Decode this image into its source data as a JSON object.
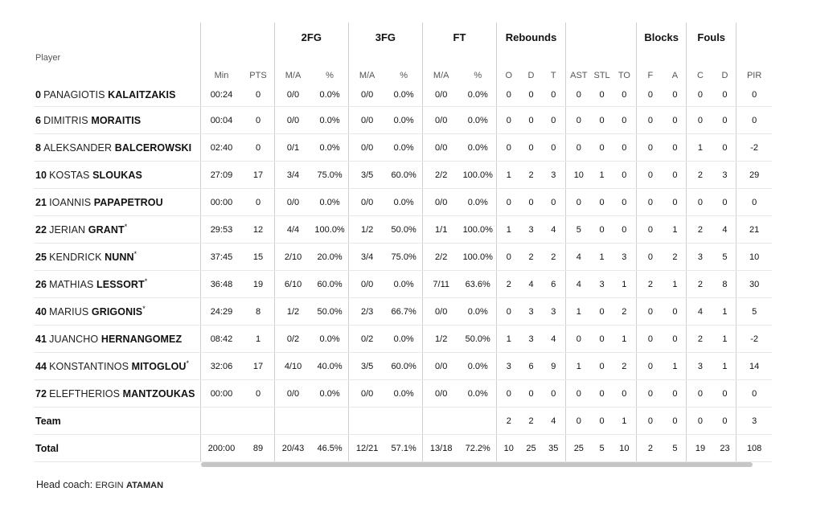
{
  "groups": {
    "fg2": "2FG",
    "fg3": "3FG",
    "ft": "FT",
    "reb": "Rebounds",
    "blk": "Blocks",
    "fouls": "Fouls"
  },
  "headers": {
    "player": "Player",
    "min": "Min",
    "pts": "PTS",
    "fg2_ma": "M/A",
    "fg2_pct": "%",
    "fg3_ma": "M/A",
    "fg3_pct": "%",
    "ft_ma": "M/A",
    "ft_pct": "%",
    "o": "O",
    "d": "D",
    "t": "T",
    "ast": "AST",
    "stl": "STL",
    "to": "TO",
    "bf": "F",
    "ba": "A",
    "fc": "C",
    "fd": "D",
    "pir": "PIR"
  },
  "players": [
    {
      "num": "0",
      "first": "PANAGIOTIS",
      "last": "KALAITZAKIS",
      "star": "",
      "min": "00:24",
      "pts": "0",
      "fg2_ma": "0/0",
      "fg2_pct": "0.0%",
      "fg3_ma": "0/0",
      "fg3_pct": "0.0%",
      "ft_ma": "0/0",
      "ft_pct": "0.0%",
      "o": "0",
      "d": "0",
      "t": "0",
      "ast": "0",
      "stl": "0",
      "to": "0",
      "bf": "0",
      "ba": "0",
      "fc": "0",
      "fd": "0",
      "pir": "0"
    },
    {
      "num": "6",
      "first": "DIMITRIS",
      "last": "MORAITIS",
      "star": "",
      "min": "00:04",
      "pts": "0",
      "fg2_ma": "0/0",
      "fg2_pct": "0.0%",
      "fg3_ma": "0/0",
      "fg3_pct": "0.0%",
      "ft_ma": "0/0",
      "ft_pct": "0.0%",
      "o": "0",
      "d": "0",
      "t": "0",
      "ast": "0",
      "stl": "0",
      "to": "0",
      "bf": "0",
      "ba": "0",
      "fc": "0",
      "fd": "0",
      "pir": "0"
    },
    {
      "num": "8",
      "first": "ALEKSANDER",
      "last": "BALCEROWSKI",
      "star": "",
      "min": "02:40",
      "pts": "0",
      "fg2_ma": "0/1",
      "fg2_pct": "0.0%",
      "fg3_ma": "0/0",
      "fg3_pct": "0.0%",
      "ft_ma": "0/0",
      "ft_pct": "0.0%",
      "o": "0",
      "d": "0",
      "t": "0",
      "ast": "0",
      "stl": "0",
      "to": "0",
      "bf": "0",
      "ba": "0",
      "fc": "1",
      "fd": "0",
      "pir": "-2"
    },
    {
      "num": "10",
      "first": "KOSTAS",
      "last": "SLOUKAS",
      "star": "",
      "min": "27:09",
      "pts": "17",
      "fg2_ma": "3/4",
      "fg2_pct": "75.0%",
      "fg3_ma": "3/5",
      "fg3_pct": "60.0%",
      "ft_ma": "2/2",
      "ft_pct": "100.0%",
      "o": "1",
      "d": "2",
      "t": "3",
      "ast": "10",
      "stl": "1",
      "to": "0",
      "bf": "0",
      "ba": "0",
      "fc": "2",
      "fd": "3",
      "pir": "29"
    },
    {
      "num": "21",
      "first": "IOANNIS",
      "last": "PAPAPETROU",
      "star": "",
      "min": "00:00",
      "pts": "0",
      "fg2_ma": "0/0",
      "fg2_pct": "0.0%",
      "fg3_ma": "0/0",
      "fg3_pct": "0.0%",
      "ft_ma": "0/0",
      "ft_pct": "0.0%",
      "o": "0",
      "d": "0",
      "t": "0",
      "ast": "0",
      "stl": "0",
      "to": "0",
      "bf": "0",
      "ba": "0",
      "fc": "0",
      "fd": "0",
      "pir": "0"
    },
    {
      "num": "22",
      "first": "JERIAN",
      "last": "GRANT",
      "star": "*",
      "min": "29:53",
      "pts": "12",
      "fg2_ma": "4/4",
      "fg2_pct": "100.0%",
      "fg3_ma": "1/2",
      "fg3_pct": "50.0%",
      "ft_ma": "1/1",
      "ft_pct": "100.0%",
      "o": "1",
      "d": "3",
      "t": "4",
      "ast": "5",
      "stl": "0",
      "to": "0",
      "bf": "0",
      "ba": "1",
      "fc": "2",
      "fd": "4",
      "pir": "21"
    },
    {
      "num": "25",
      "first": "KENDRICK",
      "last": "NUNN",
      "star": "*",
      "min": "37:45",
      "pts": "15",
      "fg2_ma": "2/10",
      "fg2_pct": "20.0%",
      "fg3_ma": "3/4",
      "fg3_pct": "75.0%",
      "ft_ma": "2/2",
      "ft_pct": "100.0%",
      "o": "0",
      "d": "2",
      "t": "2",
      "ast": "4",
      "stl": "1",
      "to": "3",
      "bf": "0",
      "ba": "2",
      "fc": "3",
      "fd": "5",
      "pir": "10"
    },
    {
      "num": "26",
      "first": "MATHIAS",
      "last": "LESSORT",
      "star": "*",
      "min": "36:48",
      "pts": "19",
      "fg2_ma": "6/10",
      "fg2_pct": "60.0%",
      "fg3_ma": "0/0",
      "fg3_pct": "0.0%",
      "ft_ma": "7/11",
      "ft_pct": "63.6%",
      "o": "2",
      "d": "4",
      "t": "6",
      "ast": "4",
      "stl": "3",
      "to": "1",
      "bf": "2",
      "ba": "1",
      "fc": "2",
      "fd": "8",
      "pir": "30"
    },
    {
      "num": "40",
      "first": "MARIUS",
      "last": "GRIGONIS",
      "star": "*",
      "min": "24:29",
      "pts": "8",
      "fg2_ma": "1/2",
      "fg2_pct": "50.0%",
      "fg3_ma": "2/3",
      "fg3_pct": "66.7%",
      "ft_ma": "0/0",
      "ft_pct": "0.0%",
      "o": "0",
      "d": "3",
      "t": "3",
      "ast": "1",
      "stl": "0",
      "to": "2",
      "bf": "0",
      "ba": "0",
      "fc": "4",
      "fd": "1",
      "pir": "5"
    },
    {
      "num": "41",
      "first": "JUANCHO",
      "last": "HERNANGOMEZ",
      "star": "",
      "min": "08:42",
      "pts": "1",
      "fg2_ma": "0/2",
      "fg2_pct": "0.0%",
      "fg3_ma": "0/2",
      "fg3_pct": "0.0%",
      "ft_ma": "1/2",
      "ft_pct": "50.0%",
      "o": "1",
      "d": "3",
      "t": "4",
      "ast": "0",
      "stl": "0",
      "to": "1",
      "bf": "0",
      "ba": "0",
      "fc": "2",
      "fd": "1",
      "pir": "-2"
    },
    {
      "num": "44",
      "first": "KONSTANTINOS",
      "last": "MITOGLOU",
      "star": "*",
      "min": "32:06",
      "pts": "17",
      "fg2_ma": "4/10",
      "fg2_pct": "40.0%",
      "fg3_ma": "3/5",
      "fg3_pct": "60.0%",
      "ft_ma": "0/0",
      "ft_pct": "0.0%",
      "o": "3",
      "d": "6",
      "t": "9",
      "ast": "1",
      "stl": "0",
      "to": "2",
      "bf": "0",
      "ba": "1",
      "fc": "3",
      "fd": "1",
      "pir": "14"
    },
    {
      "num": "72",
      "first": "ELEFTHERIOS",
      "last": "MANTZOUKAS",
      "star": "",
      "min": "00:00",
      "pts": "0",
      "fg2_ma": "0/0",
      "fg2_pct": "0.0%",
      "fg3_ma": "0/0",
      "fg3_pct": "0.0%",
      "ft_ma": "0/0",
      "ft_pct": "0.0%",
      "o": "0",
      "d": "0",
      "t": "0",
      "ast": "0",
      "stl": "0",
      "to": "0",
      "bf": "0",
      "ba": "0",
      "fc": "0",
      "fd": "0",
      "pir": "0"
    }
  ],
  "team": {
    "label": "Team",
    "min": "",
    "pts": "",
    "fg2_ma": "",
    "fg2_pct": "",
    "fg3_ma": "",
    "fg3_pct": "",
    "ft_ma": "",
    "ft_pct": "",
    "o": "2",
    "d": "2",
    "t": "4",
    "ast": "0",
    "stl": "0",
    "to": "1",
    "bf": "0",
    "ba": "0",
    "fc": "0",
    "fd": "0",
    "pir": "3"
  },
  "total": {
    "label": "Total",
    "min": "200:00",
    "pts": "89",
    "fg2_ma": "20/43",
    "fg2_pct": "46.5%",
    "fg3_ma": "12/21",
    "fg3_pct": "57.1%",
    "ft_ma": "13/18",
    "ft_pct": "72.2%",
    "o": "10",
    "d": "25",
    "t": "35",
    "ast": "25",
    "stl": "5",
    "to": "10",
    "bf": "2",
    "ba": "5",
    "fc": "19",
    "fd": "23",
    "pir": "108"
  },
  "coach": {
    "label": "Head coach:",
    "first": "ERGIN",
    "last": "ATAMAN"
  },
  "colors": {
    "divider": "#cfcfcf",
    "row_border": "#e8e8e8",
    "scrollbar": "#c6c6c6"
  }
}
